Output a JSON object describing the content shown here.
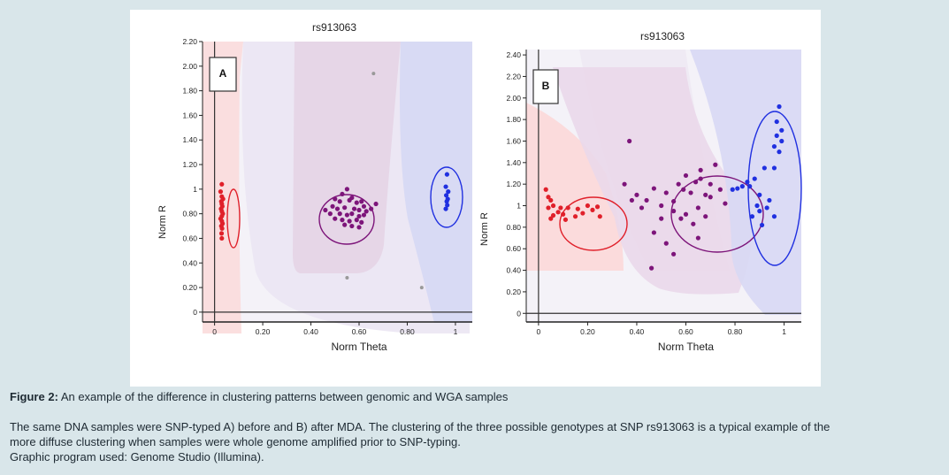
{
  "chart_data": [
    {
      "type": "scatter",
      "panel_label": "A",
      "title": "rs913063",
      "xlabel": "Norm Theta",
      "ylabel": "Norm R",
      "xlim": [
        -0.05,
        1.07
      ],
      "ylim": [
        -0.08,
        2.2
      ],
      "x_ticks": [
        "0",
        "0.20",
        "0.40",
        "0.60",
        "0.80",
        "1"
      ],
      "y_ticks": [
        "0",
        "0.20",
        "0.40",
        "0.60",
        "0.80",
        "1",
        "1.20",
        "1.40",
        "1.60",
        "1.80",
        "2.00",
        "2.20"
      ],
      "series": [
        {
          "color": "#e0202a",
          "points": [
            [
              0.03,
              1.04
            ],
            [
              0.025,
              0.98
            ],
            [
              0.03,
              0.94
            ],
            [
              0.035,
              0.92
            ],
            [
              0.028,
              0.9
            ],
            [
              0.03,
              0.88
            ],
            [
              0.032,
              0.86
            ],
            [
              0.027,
              0.84
            ],
            [
              0.03,
              0.82
            ],
            [
              0.034,
              0.8
            ],
            [
              0.03,
              0.78
            ],
            [
              0.025,
              0.76
            ],
            [
              0.03,
              0.74
            ],
            [
              0.033,
              0.72
            ],
            [
              0.028,
              0.7
            ],
            [
              0.031,
              0.68
            ],
            [
              0.029,
              0.64
            ],
            [
              0.03,
              0.6
            ]
          ]
        },
        {
          "color": "#7d157a",
          "points": [
            [
              0.53,
              0.96
            ],
            [
              0.55,
              1.0
            ],
            [
              0.57,
              0.93
            ],
            [
              0.5,
              0.92
            ],
            [
              0.52,
              0.9
            ],
            [
              0.56,
              0.91
            ],
            [
              0.59,
              0.89
            ],
            [
              0.61,
              0.9
            ],
            [
              0.62,
              0.86
            ],
            [
              0.49,
              0.86
            ],
            [
              0.51,
              0.84
            ],
            [
              0.54,
              0.85
            ],
            [
              0.58,
              0.84
            ],
            [
              0.6,
              0.83
            ],
            [
              0.63,
              0.82
            ],
            [
              0.65,
              0.84
            ],
            [
              0.48,
              0.8
            ],
            [
              0.52,
              0.8
            ],
            [
              0.55,
              0.79
            ],
            [
              0.57,
              0.8
            ],
            [
              0.6,
              0.78
            ],
            [
              0.62,
              0.79
            ],
            [
              0.5,
              0.76
            ],
            [
              0.53,
              0.75
            ],
            [
              0.56,
              0.74
            ],
            [
              0.59,
              0.75
            ],
            [
              0.61,
              0.73
            ],
            [
              0.54,
              0.71
            ],
            [
              0.57,
              0.7
            ],
            [
              0.6,
              0.69
            ],
            [
              0.67,
              0.88
            ],
            [
              0.46,
              0.83
            ]
          ]
        },
        {
          "color": "#2030e0",
          "points": [
            [
              0.965,
              1.12
            ],
            [
              0.96,
              1.02
            ],
            [
              0.97,
              0.98
            ],
            [
              0.962,
              0.95
            ],
            [
              0.968,
              0.92
            ],
            [
              0.964,
              0.9
            ],
            [
              0.966,
              0.87
            ],
            [
              0.96,
              0.84
            ]
          ]
        },
        {
          "color": "#999999",
          "points": [
            [
              0.66,
              1.94
            ],
            [
              0.55,
              0.28
            ],
            [
              0.86,
              0.2
            ]
          ]
        }
      ]
    },
    {
      "type": "scatter",
      "panel_label": "B",
      "title": "rs913063",
      "xlabel": "Norm Theta",
      "ylabel": "Norm R",
      "xlim": [
        -0.05,
        1.07
      ],
      "ylim": [
        -0.08,
        2.45
      ],
      "x_ticks": [
        "0",
        "0.20",
        "0.40",
        "0.60",
        "0.80",
        "1"
      ],
      "y_ticks": [
        "0",
        "0.20",
        "0.40",
        "0.60",
        "0.80",
        "1",
        "1.20",
        "1.40",
        "1.60",
        "1.80",
        "2.00",
        "2.20",
        "2.40"
      ],
      "series": [
        {
          "color": "#e0202a",
          "points": [
            [
              0.04,
              1.08
            ],
            [
              0.03,
              1.15
            ],
            [
              0.05,
              1.05
            ],
            [
              0.06,
              1.0
            ],
            [
              0.04,
              0.98
            ],
            [
              0.09,
              0.98
            ],
            [
              0.12,
              0.98
            ],
            [
              0.16,
              0.97
            ],
            [
              0.2,
              1.0
            ],
            [
              0.24,
              0.99
            ],
            [
              0.08,
              0.94
            ],
            [
              0.06,
              0.91
            ],
            [
              0.1,
              0.92
            ],
            [
              0.15,
              0.9
            ],
            [
              0.18,
              0.93
            ],
            [
              0.22,
              0.96
            ],
            [
              0.25,
              0.9
            ],
            [
              0.05,
              0.88
            ],
            [
              0.11,
              0.87
            ]
          ]
        },
        {
          "color": "#7d157a",
          "points": [
            [
              0.35,
              1.2
            ],
            [
              0.4,
              1.1
            ],
            [
              0.44,
              1.05
            ],
            [
              0.47,
              1.16
            ],
            [
              0.5,
              1.0
            ],
            [
              0.52,
              1.12
            ],
            [
              0.55,
              1.04
            ],
            [
              0.57,
              1.2
            ],
            [
              0.59,
              1.15
            ],
            [
              0.6,
              1.28
            ],
            [
              0.62,
              1.12
            ],
            [
              0.64,
              1.22
            ],
            [
              0.66,
              1.33
            ],
            [
              0.68,
              1.1
            ],
            [
              0.7,
              1.2
            ],
            [
              0.72,
              1.38
            ],
            [
              0.74,
              1.15
            ],
            [
              0.76,
              1.02
            ],
            [
              0.55,
              0.95
            ],
            [
              0.6,
              0.92
            ],
            [
              0.65,
              0.98
            ],
            [
              0.58,
              0.88
            ],
            [
              0.63,
              0.83
            ],
            [
              0.68,
              0.9
            ],
            [
              0.5,
              0.88
            ],
            [
              0.47,
              0.75
            ],
            [
              0.52,
              0.65
            ],
            [
              0.65,
              0.7
            ],
            [
              0.7,
              1.08
            ],
            [
              0.66,
              1.25
            ],
            [
              0.38,
              1.05
            ],
            [
              0.42,
              0.98
            ],
            [
              0.37,
              1.6
            ],
            [
              0.46,
              0.42
            ],
            [
              0.55,
              0.55
            ]
          ]
        },
        {
          "color": "#2030e0",
          "points": [
            [
              0.98,
              1.92
            ],
            [
              0.97,
              1.78
            ],
            [
              0.99,
              1.7
            ],
            [
              0.97,
              1.65
            ],
            [
              0.99,
              1.6
            ],
            [
              0.96,
              1.55
            ],
            [
              0.98,
              1.5
            ],
            [
              0.96,
              1.35
            ],
            [
              0.92,
              1.35
            ],
            [
              0.88,
              1.25
            ],
            [
              0.85,
              1.22
            ],
            [
              0.83,
              1.18
            ],
            [
              0.81,
              1.16
            ],
            [
              0.79,
              1.15
            ],
            [
              0.86,
              1.18
            ],
            [
              0.9,
              1.1
            ],
            [
              0.89,
              1.0
            ],
            [
              0.93,
              0.98
            ],
            [
              0.96,
              0.9
            ],
            [
              0.91,
              0.82
            ],
            [
              0.87,
              0.9
            ],
            [
              0.94,
              1.05
            ],
            [
              0.9,
              0.95
            ]
          ]
        }
      ]
    }
  ],
  "caption": {
    "figure_label": "Figure 2:",
    "figure_title": "An example of the difference in clustering patterns between genomic and WGA samples",
    "line1": "The same DNA samples were SNP-typed A) before and B) after MDA. The clustering of the three possible genotypes at SNP rs913063 is a typical example of the",
    "line2": "more diffuse clustering when samples were whole genome amplified prior to SNP-typing.",
    "line3": "Graphic program used:  Genome Studio (Illumina)."
  }
}
